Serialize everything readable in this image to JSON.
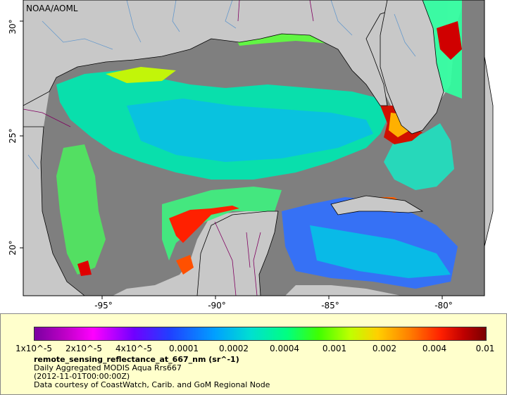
{
  "credit": "NOAA/AOML",
  "axes": {
    "x_ticks": [
      "-95°",
      "-90°",
      "-85°",
      "-80°"
    ],
    "y_ticks": [
      "30°",
      "25°",
      "20°"
    ]
  },
  "legend": {
    "tick_labels": [
      "1x10^-5",
      "2x10^-5",
      "4x10^-5",
      "0.0001",
      "0.0002",
      "0.0004",
      "0.001",
      "0.002",
      "0.004",
      "0.01"
    ],
    "variable": "remote_sensing_reflectance_at_667_nm (sr^-1)",
    "product": "Daily Aggregated MODIS Aqua Rrs667",
    "time": "(2012-11-01T00:00:00Z)",
    "courtesy": "Data courtesy of CoastWatch, Carib. and GoM Regional Node"
  },
  "colors": {
    "land": "#c8c8c8",
    "no_data": "#7f7f7f",
    "coastline": "#000000",
    "rivers": "#6699cc",
    "borders": "#800060",
    "legend_background": "#ffffcc"
  }
}
